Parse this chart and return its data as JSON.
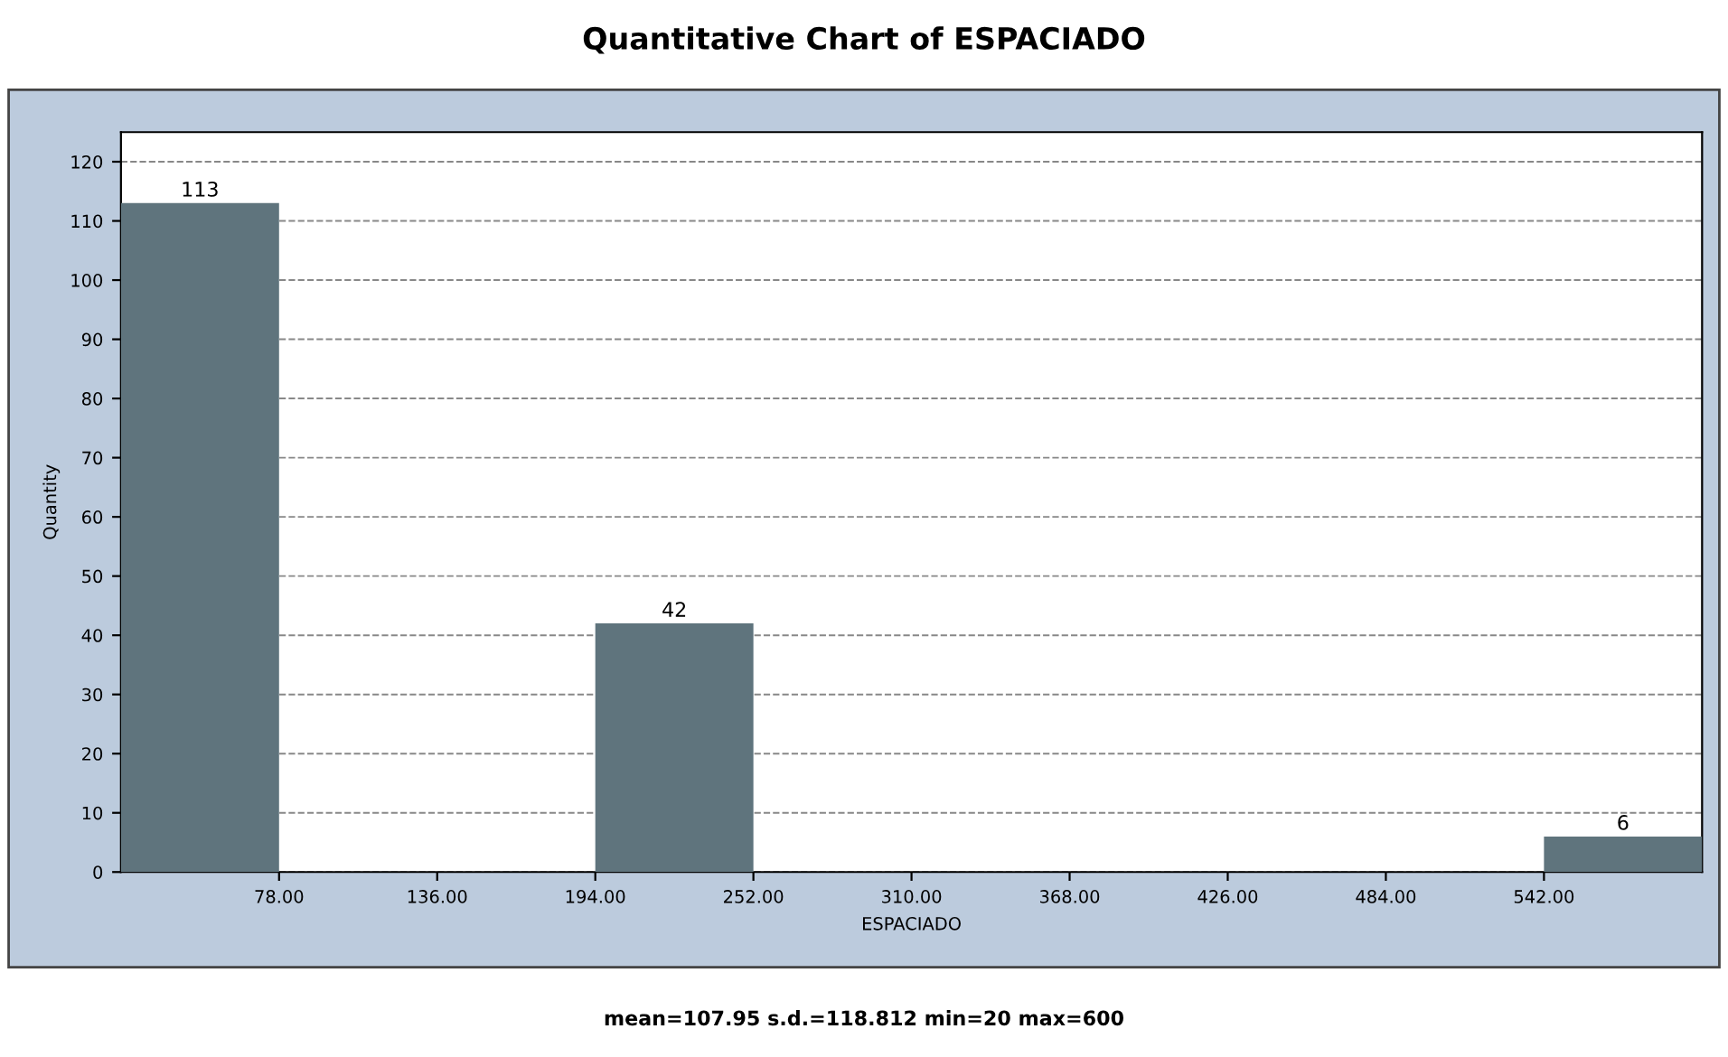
{
  "chart_data": {
    "type": "histogram",
    "title": "Quantitative Chart of ESPACIADO",
    "xlabel": "ESPACIADO",
    "ylabel": "Quantity",
    "bins": [
      20,
      78,
      136,
      194,
      252,
      310,
      368,
      426,
      484,
      542,
      600
    ],
    "values": [
      113,
      0,
      0,
      42,
      0,
      0,
      0,
      0,
      0,
      6
    ],
    "value_labels": [
      "113",
      null,
      null,
      "42",
      null,
      null,
      null,
      null,
      null,
      "6"
    ],
    "color": "#5f747d",
    "xlim": [
      20,
      600
    ],
    "xticks": [
      {
        "value": 78,
        "label": "78.00"
      },
      {
        "value": 136,
        "label": "136.00"
      },
      {
        "value": 194,
        "label": "194.00"
      },
      {
        "value": 252,
        "label": "252.00"
      },
      {
        "value": 310,
        "label": "310.00"
      },
      {
        "value": 368,
        "label": "368.00"
      },
      {
        "value": 426,
        "label": "426.00"
      },
      {
        "value": 484,
        "label": "484.00"
      },
      {
        "value": 542,
        "label": "542.00"
      }
    ],
    "ylim": [
      0,
      125
    ],
    "yticks": [
      0,
      10,
      20,
      30,
      40,
      50,
      60,
      70,
      80,
      90,
      100,
      110,
      120
    ],
    "grid": "y",
    "legend": false,
    "annotations": [
      "mean=107.95 s.d.=118.812 min=20 max=600"
    ]
  }
}
